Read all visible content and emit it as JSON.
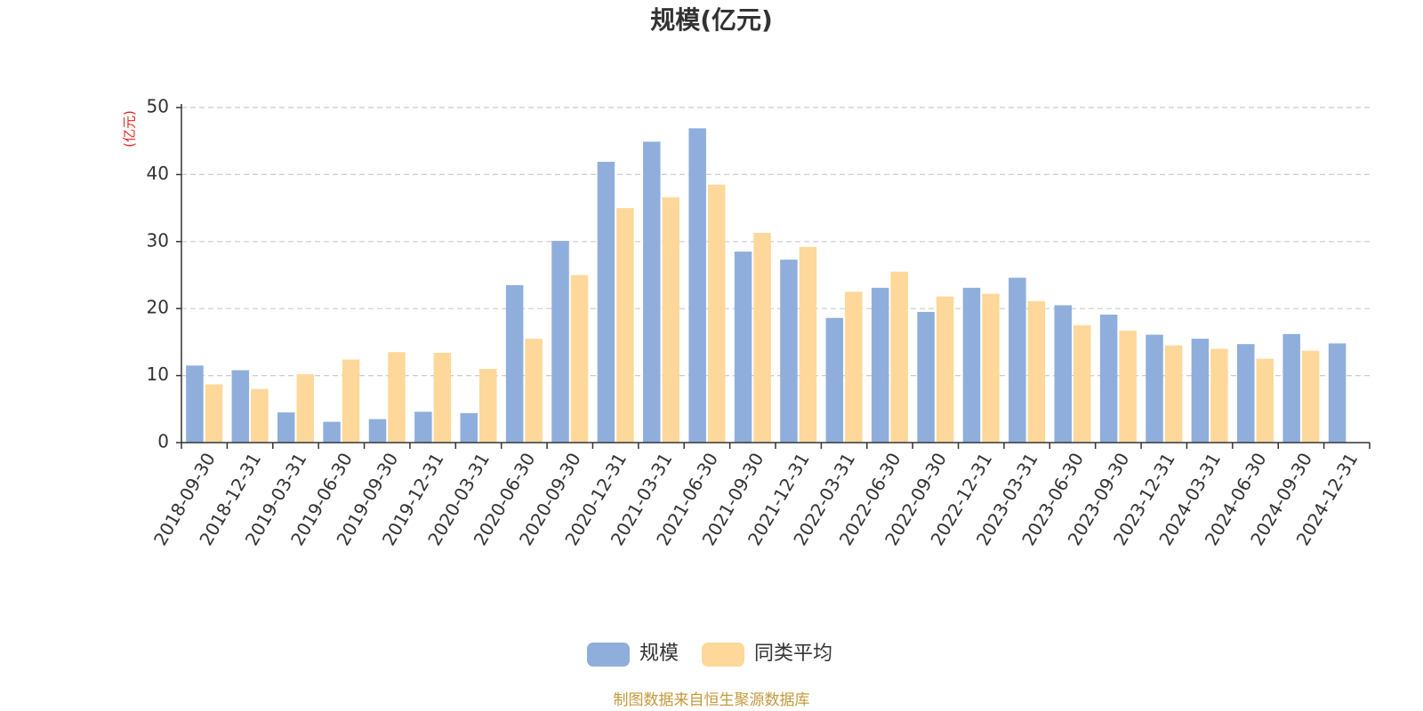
{
  "chart_data": {
    "type": "bar",
    "title": "规模(亿元)",
    "ylabel": "(亿元)",
    "ylim": [
      0,
      50
    ],
    "yticks": [
      0,
      10,
      20,
      30,
      40,
      50
    ],
    "grid": true,
    "legend_position": "bottom-center",
    "categories": [
      "2018-09-30",
      "2018-12-31",
      "2019-03-31",
      "2019-06-30",
      "2019-09-30",
      "2019-12-31",
      "2020-03-31",
      "2020-06-30",
      "2020-09-30",
      "2020-12-31",
      "2021-03-31",
      "2021-06-30",
      "2021-09-30",
      "2021-12-31",
      "2022-03-31",
      "2022-06-30",
      "2022-09-30",
      "2022-12-31",
      "2023-03-31",
      "2023-06-30",
      "2023-09-30",
      "2023-12-31",
      "2024-03-31",
      "2024-06-30",
      "2024-09-30",
      "2024-12-31"
    ],
    "series": [
      {
        "name": "规模",
        "color": "#8faedc",
        "values": [
          11.5,
          10.8,
          4.5,
          3.1,
          3.5,
          4.6,
          4.4,
          23.5,
          30.1,
          41.9,
          44.9,
          46.9,
          28.5,
          27.3,
          18.6,
          23.1,
          19.5,
          23.1,
          24.6,
          20.5,
          19.1,
          16.1,
          15.5,
          14.7,
          16.2,
          14.8
        ]
      },
      {
        "name": "同类平均",
        "color": "#fdd89a",
        "values": [
          8.7,
          8.0,
          10.2,
          12.4,
          13.5,
          13.4,
          11.0,
          15.5,
          25.0,
          35.0,
          36.6,
          38.5,
          31.3,
          29.2,
          22.5,
          25.5,
          21.8,
          22.2,
          21.1,
          17.5,
          16.7,
          14.5,
          14.0,
          12.5,
          13.7,
          null
        ]
      }
    ]
  },
  "axis_unit_color": "#e0271e",
  "source_note": "制图数据来自恒生聚源数据库",
  "source_color": "#c49a3c"
}
